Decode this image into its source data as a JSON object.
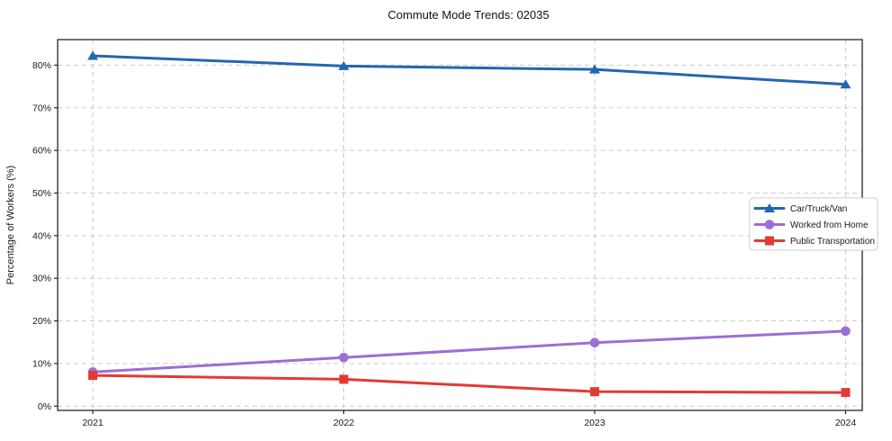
{
  "figure": {
    "title": "Commute Mode Trends: 02035",
    "background": "#ffffff"
  },
  "chart_data": {
    "type": "line",
    "title": "Commute Mode Trends: 02035",
    "xlabel": "",
    "ylabel": "Percentage of Workers (%)",
    "categories": [
      "2021",
      "2022",
      "2023",
      "2024"
    ],
    "series": [
      {
        "name": "Car/Truck/Van",
        "marker": "triangle",
        "color": "#2565b2",
        "values": [
          82.2,
          79.8,
          79.0,
          75.5
        ]
      },
      {
        "name": "Worked from Home",
        "marker": "circle",
        "color": "#9b6fd4",
        "values": [
          8.0,
          11.4,
          14.9,
          17.6
        ]
      },
      {
        "name": "Public Transportation",
        "marker": "square",
        "color": "#e23a33",
        "values": [
          7.2,
          6.3,
          3.4,
          3.2
        ]
      }
    ],
    "ylim": [
      -1,
      86
    ],
    "yticks": [
      0,
      10,
      20,
      30,
      40,
      50,
      60,
      70,
      80
    ],
    "ytick_labels": [
      "0%",
      "10%",
      "20%",
      "30%",
      "40%",
      "50%",
      "60%",
      "70%",
      "80%"
    ],
    "grid": true,
    "grid_style": "dashed",
    "legend_position": "center right",
    "legend_labels": [
      "Car/Truck/Van",
      "Worked from Home",
      "Public Transportation"
    ]
  },
  "colors": {
    "grid": "#cbcbcb",
    "axis": "#262626",
    "text": "#1a1a1a",
    "legend_border": "#cccccc",
    "legend_background": "#ffffff"
  }
}
